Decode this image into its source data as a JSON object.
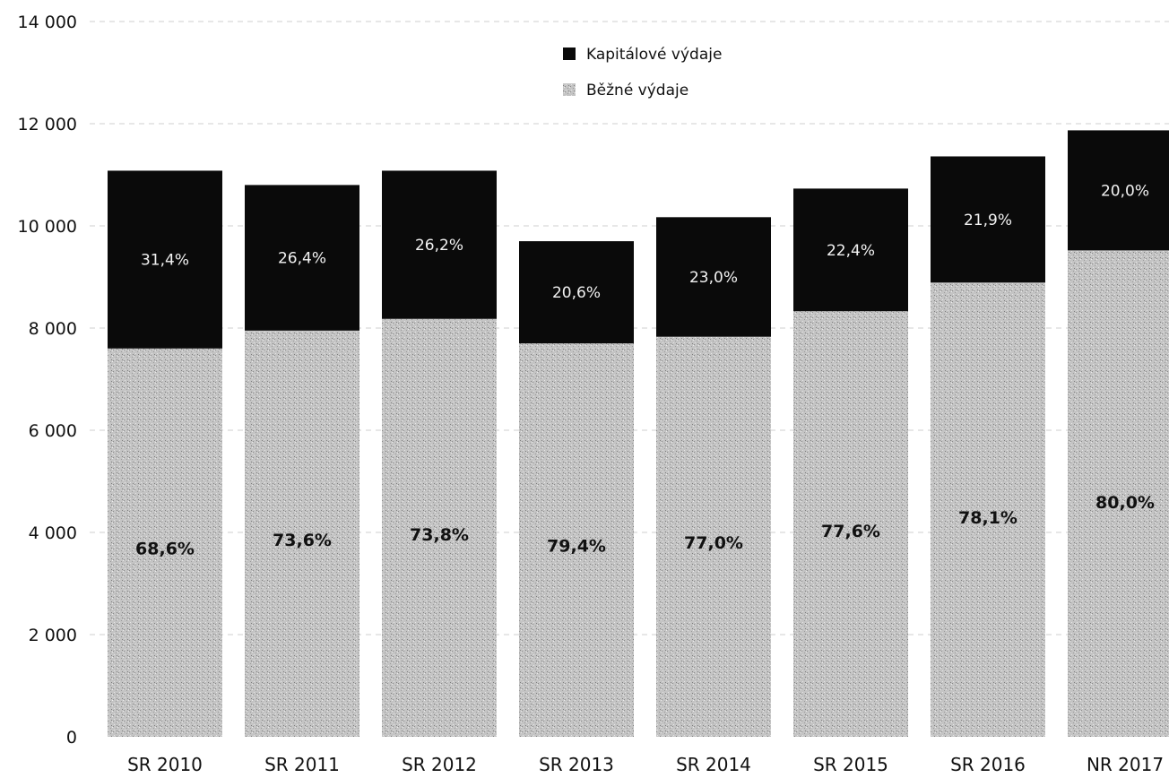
{
  "chart_data": {
    "type": "bar",
    "stacked": true,
    "categories": [
      "SR 2010",
      "SR 2011",
      "SR 2012",
      "SR 2013",
      "SR 2014",
      "SR 2015",
      "SR 2016",
      "NR 2017"
    ],
    "series": [
      {
        "name": "Běžné výdaje",
        "color": "#b8b8b8",
        "values": [
          7600,
          7950,
          8180,
          7700,
          7830,
          8330,
          8890,
          9520
        ],
        "labels": [
          "68,6%",
          "73,6%",
          "73,8%",
          "79,4%",
          "77,0%",
          "77,6%",
          "78,1%",
          "80,0%"
        ]
      },
      {
        "name": "Kapitálové výdaje",
        "color": "#0a0a0a",
        "values": [
          3480,
          2850,
          2900,
          2000,
          2340,
          2400,
          2470,
          2350
        ],
        "labels": [
          "31,4%",
          "26,4%",
          "26,2%",
          "20,6%",
          "23,0%",
          "22,4%",
          "21,9%",
          "20,0%"
        ]
      }
    ],
    "yticks": [
      "0",
      "2 000",
      "4 000",
      "6 000",
      "8 000",
      "10 000",
      "12 000",
      "14 000"
    ],
    "ylim": [
      0,
      14000
    ],
    "grid": true,
    "legend_position": "top-center"
  }
}
